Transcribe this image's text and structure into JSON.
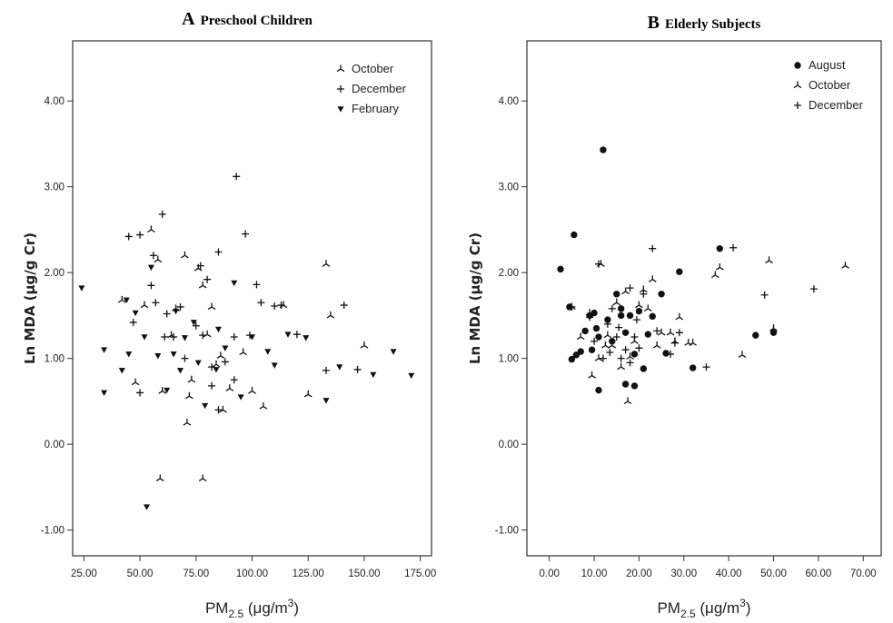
{
  "chart_data": [
    {
      "type": "scatter",
      "panel_letter": "A",
      "title": "Preschool Children",
      "xlabel": {
        "main": "PM",
        "sub": "2.5",
        "units_pre": " (μg/m",
        "sup": "3",
        "units_post": ")"
      },
      "ylabel": "Ln MDA (μg/g Cr)",
      "xlim": [
        20,
        180
      ],
      "ylim": [
        -1.3,
        4.7
      ],
      "xticks": [
        "25.00",
        "50.00",
        "75.00",
        "100.00",
        "125.00",
        "150.00",
        "175.00"
      ],
      "xtick_values": [
        25,
        50,
        75,
        100,
        125,
        150,
        175
      ],
      "yticks": [
        "-1.00",
        "0.00",
        "1.00",
        "2.00",
        "3.00",
        "4.00"
      ],
      "ytick_values": [
        -1,
        0,
        1,
        2,
        3,
        4
      ],
      "grid": false,
      "legend_position": "top-right",
      "series": [
        {
          "name": "October",
          "marker": "tri",
          "points": [
            [
              42,
              1.68
            ],
            [
              52,
              1.62
            ],
            [
              55,
              2.5
            ],
            [
              58,
              2.15
            ],
            [
              70,
              2.2
            ],
            [
              76,
              2.05
            ],
            [
              78,
              1.85
            ],
            [
              82,
              1.6
            ],
            [
              60,
              0.62
            ],
            [
              64,
              1.27
            ],
            [
              71,
              0.25
            ],
            [
              73,
              0.75
            ],
            [
              84,
              0.93
            ],
            [
              87,
              0.4
            ],
            [
              90,
              0.65
            ],
            [
              96,
              1.07
            ],
            [
              100,
              0.62
            ],
            [
              105,
              0.44
            ],
            [
              114,
              1.62
            ],
            [
              125,
              0.58
            ],
            [
              133,
              2.1
            ],
            [
              135,
              1.5
            ],
            [
              150,
              1.15
            ],
            [
              80,
              1.28
            ],
            [
              66,
              1.58
            ],
            [
              59,
              -0.4
            ],
            [
              78,
              -0.4
            ],
            [
              72,
              0.56
            ],
            [
              86,
              1.03
            ],
            [
              48,
              0.72
            ]
          ]
        },
        {
          "name": "December",
          "marker": "plus",
          "points": [
            [
              45,
              2.42
            ],
            [
              50,
              2.44
            ],
            [
              56,
              2.2
            ],
            [
              60,
              2.68
            ],
            [
              62,
              1.52
            ],
            [
              65,
              1.25
            ],
            [
              68,
              1.6
            ],
            [
              75,
              1.38
            ],
            [
              77,
              2.08
            ],
            [
              80,
              1.92
            ],
            [
              82,
              0.9
            ],
            [
              85,
              2.24
            ],
            [
              88,
              0.96
            ],
            [
              92,
              1.25
            ],
            [
              93,
              3.12
            ],
            [
              97,
              2.45
            ],
            [
              99,
              1.27
            ],
            [
              102,
              1.86
            ],
            [
              104,
              1.65
            ],
            [
              110,
              1.61
            ],
            [
              113,
              1.62
            ],
            [
              120,
              1.28
            ],
            [
              133,
              0.86
            ],
            [
              141,
              1.62
            ],
            [
              147,
              0.87
            ],
            [
              57,
              1.65
            ],
            [
              70,
              1.0
            ],
            [
              78,
              1.27
            ],
            [
              85,
              0.4
            ],
            [
              47,
              1.42
            ],
            [
              50,
              0.6
            ],
            [
              55,
              1.85
            ],
            [
              82,
              0.68
            ],
            [
              92,
              0.75
            ],
            [
              61,
              1.25
            ]
          ]
        },
        {
          "name": "February",
          "marker": "tri-down",
          "points": [
            [
              24,
              1.82
            ],
            [
              34,
              1.1
            ],
            [
              34,
              0.6
            ],
            [
              42,
              0.86
            ],
            [
              44,
              1.68
            ],
            [
              48,
              1.53
            ],
            [
              52,
              1.25
            ],
            [
              55,
              2.06
            ],
            [
              53,
              -0.73
            ],
            [
              58,
              1.03
            ],
            [
              62,
              0.63
            ],
            [
              66,
              1.55
            ],
            [
              68,
              0.86
            ],
            [
              70,
              1.24
            ],
            [
              74,
              1.42
            ],
            [
              76,
              0.95
            ],
            [
              79,
              0.45
            ],
            [
              85,
              1.34
            ],
            [
              88,
              1.12
            ],
            [
              92,
              1.88
            ],
            [
              95,
              0.55
            ],
            [
              100,
              1.25
            ],
            [
              107,
              1.08
            ],
            [
              110,
              0.92
            ],
            [
              116,
              1.28
            ],
            [
              124,
              1.24
            ],
            [
              133,
              0.51
            ],
            [
              139,
              0.9
            ],
            [
              154,
              0.81
            ],
            [
              163,
              1.08
            ],
            [
              171,
              0.8
            ],
            [
              84,
              0.87
            ],
            [
              45,
              1.05
            ],
            [
              65,
              1.05
            ]
          ]
        }
      ]
    },
    {
      "type": "scatter",
      "panel_letter": "B",
      "title": "Elderly Subjects",
      "xlabel": {
        "main": "PM",
        "sub": "2.5",
        "units_pre": " (μg/m",
        "sup": "3",
        "units_post": ")"
      },
      "ylabel": "Ln MDA (μg/g Cr)",
      "xlim": [
        -5,
        74
      ],
      "ylim": [
        -1.3,
        4.7
      ],
      "xticks": [
        "0.00",
        "10.00",
        "20.00",
        "30.00",
        "40.00",
        "50.00",
        "60.00",
        "70.00"
      ],
      "xtick_values": [
        0,
        10,
        20,
        30,
        40,
        50,
        60,
        70
      ],
      "yticks": [
        "-1.00",
        "0.00",
        "1.00",
        "2.00",
        "3.00",
        "4.00"
      ],
      "ytick_values": [
        -1,
        0,
        1,
        2,
        3,
        4
      ],
      "grid": false,
      "legend_position": "top-right",
      "series": [
        {
          "name": "August",
          "marker": "dot",
          "points": [
            [
              2.5,
              2.04
            ],
            [
              4.5,
              1.6
            ],
            [
              5.5,
              2.44
            ],
            [
              5,
              0.99
            ],
            [
              6,
              1.04
            ],
            [
              7,
              1.08
            ],
            [
              8,
              1.32
            ],
            [
              9,
              1.5
            ],
            [
              9.5,
              1.1
            ],
            [
              10,
              1.53
            ],
            [
              10.5,
              1.35
            ],
            [
              11,
              0.63
            ],
            [
              11,
              1.25
            ],
            [
              12,
              3.43
            ],
            [
              13,
              1.45
            ],
            [
              14,
              1.2
            ],
            [
              15,
              1.75
            ],
            [
              16,
              1.5
            ],
            [
              17,
              0.7
            ],
            [
              17,
              1.3
            ],
            [
              18,
              1.5
            ],
            [
              19,
              1.05
            ],
            [
              19,
              0.68
            ],
            [
              20,
              1.55
            ],
            [
              21,
              0.88
            ],
            [
              22,
              1.28
            ],
            [
              23,
              1.49
            ],
            [
              25,
              1.75
            ],
            [
              26,
              1.06
            ],
            [
              29,
              2.01
            ],
            [
              32,
              0.89
            ],
            [
              38,
              2.28
            ],
            [
              46,
              1.27
            ],
            [
              50,
              1.3
            ],
            [
              16,
              1.58
            ]
          ]
        },
        {
          "name": "October",
          "marker": "tri",
          "points": [
            [
              5,
              1.6
            ],
            [
              7,
              1.25
            ],
            [
              9,
              1.53
            ],
            [
              9.5,
              0.8
            ],
            [
              11,
              1.0
            ],
            [
              11.5,
              2.1
            ],
            [
              13,
              1.27
            ],
            [
              14,
              1.15
            ],
            [
              15,
              1.65
            ],
            [
              16,
              0.9
            ],
            [
              17,
              1.78
            ],
            [
              17.5,
              0.5
            ],
            [
              18,
              1.02
            ],
            [
              19,
              1.2
            ],
            [
              20,
              1.62
            ],
            [
              21,
              1.8
            ],
            [
              22,
              1.58
            ],
            [
              23,
              1.92
            ],
            [
              25,
              1.3
            ],
            [
              27,
              1.3
            ],
            [
              28,
              1.2
            ],
            [
              29,
              1.48
            ],
            [
              31,
              1.18
            ],
            [
              32,
              1.18
            ],
            [
              37,
              1.97
            ],
            [
              38,
              2.06
            ],
            [
              43,
              1.04
            ],
            [
              49,
              2.14
            ],
            [
              50,
              1.35
            ],
            [
              66,
              2.08
            ],
            [
              12.5,
              1.15
            ],
            [
              24,
              1.15
            ]
          ]
        },
        {
          "name": "December",
          "marker": "plus",
          "points": [
            [
              5,
              1.6
            ],
            [
              9,
              1.48
            ],
            [
              10,
              1.2
            ],
            [
              11,
              2.1
            ],
            [
              12,
              1.0
            ],
            [
              13,
              1.4
            ],
            [
              14,
              1.58
            ],
            [
              15,
              1.25
            ],
            [
              16,
              1.0
            ],
            [
              17,
              1.1
            ],
            [
              18,
              1.82
            ],
            [
              18,
              0.95
            ],
            [
              19,
              1.25
            ],
            [
              20,
              1.12
            ],
            [
              21,
              1.75
            ],
            [
              23,
              2.28
            ],
            [
              24,
              1.32
            ],
            [
              27,
              1.05
            ],
            [
              28,
              1.18
            ],
            [
              29,
              1.3
            ],
            [
              35,
              0.9
            ],
            [
              41,
              2.29
            ],
            [
              48,
              1.74
            ],
            [
              59,
              1.81
            ],
            [
              13.5,
              1.07
            ],
            [
              19.5,
              1.45
            ],
            [
              15.5,
              1.36
            ]
          ]
        }
      ]
    }
  ]
}
